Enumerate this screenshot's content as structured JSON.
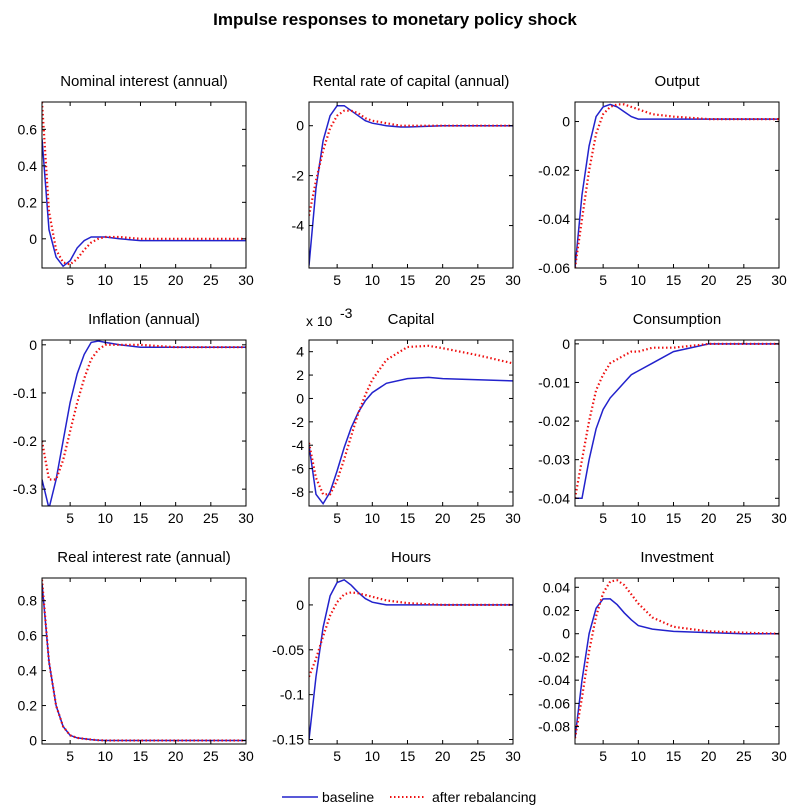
{
  "title": "Impulse responses to monetary policy shock",
  "legend": {
    "placement": "bottom-center",
    "entries": [
      {
        "label": "baseline",
        "color": "#2222cc",
        "style": "solid"
      },
      {
        "label": "after rebalancing",
        "color": "#ee1111",
        "style": "dotted"
      }
    ]
  },
  "chart_data": [
    {
      "type": "line",
      "title": "Nominal interest (annual)",
      "xlim": [
        1,
        30
      ],
      "ylim": [
        -0.16,
        0.75
      ],
      "xticks": [
        5,
        10,
        15,
        20,
        25,
        30
      ],
      "xtick_labels": [
        "5",
        "10",
        "15",
        "20",
        "25",
        "30"
      ],
      "yticks": [
        0,
        0.2,
        0.4,
        0.6
      ],
      "ytick_labels": [
        "0",
        "0.2",
        "0.4",
        "0.6"
      ],
      "series": [
        {
          "name": "baseline",
          "x": [
            1,
            2,
            3,
            4,
            5,
            6,
            7,
            8,
            9,
            10,
            12,
            15,
            20,
            25,
            30
          ],
          "y": [
            0.55,
            0.05,
            -0.1,
            -0.15,
            -0.12,
            -0.05,
            -0.01,
            0.01,
            0.01,
            0.01,
            0,
            -0.01,
            -0.01,
            -0.01,
            -0.01
          ]
        },
        {
          "name": "after rebalancing",
          "x": [
            1,
            2,
            3,
            4,
            5,
            6,
            7,
            8,
            9,
            10,
            12,
            15,
            20,
            25,
            30
          ],
          "y": [
            0.75,
            0.15,
            -0.06,
            -0.13,
            -0.14,
            -0.11,
            -0.06,
            -0.02,
            0,
            0.01,
            0.01,
            0,
            0,
            0,
            0
          ]
        }
      ]
    },
    {
      "type": "line",
      "title": "Rental rate of capital (annual)",
      "xlim": [
        1,
        30
      ],
      "ylim": [
        -5.7,
        0.95
      ],
      "xticks": [
        5,
        10,
        15,
        20,
        25,
        30
      ],
      "xtick_labels": [
        "5",
        "10",
        "15",
        "20",
        "25",
        "30"
      ],
      "yticks": [
        -4,
        -2,
        0
      ],
      "ytick_labels": [
        "-4",
        "-2",
        "0"
      ],
      "series": [
        {
          "name": "baseline",
          "x": [
            1,
            2,
            3,
            4,
            5,
            6,
            7,
            8,
            9,
            10,
            12,
            14,
            15,
            20,
            25,
            30
          ],
          "y": [
            -5.6,
            -2.5,
            -0.6,
            0.4,
            0.8,
            0.8,
            0.6,
            0.4,
            0.2,
            0.1,
            0,
            -0.05,
            -0.05,
            0,
            0,
            0
          ]
        },
        {
          "name": "after rebalancing",
          "x": [
            1,
            2,
            3,
            4,
            5,
            6,
            7,
            8,
            9,
            10,
            12,
            14,
            15,
            20,
            25,
            30
          ],
          "y": [
            -3.6,
            -2.2,
            -1,
            -0.1,
            0.4,
            0.6,
            0.6,
            0.5,
            0.3,
            0.2,
            0.1,
            0,
            0,
            0,
            0,
            0
          ]
        }
      ]
    },
    {
      "type": "line",
      "title": "Output",
      "xlim": [
        1,
        30
      ],
      "ylim": [
        -0.06,
        0.008
      ],
      "xticks": [
        5,
        10,
        15,
        20,
        25,
        30
      ],
      "xtick_labels": [
        "5",
        "10",
        "15",
        "20",
        "25",
        "30"
      ],
      "yticks": [
        -0.06,
        -0.04,
        -0.02,
        0
      ],
      "ytick_labels": [
        "-0.06",
        "-0.04",
        "-0.02",
        "0"
      ],
      "series": [
        {
          "name": "baseline",
          "x": [
            1,
            2,
            3,
            4,
            5,
            6,
            7,
            8,
            9,
            10,
            12,
            15,
            20,
            25,
            30
          ],
          "y": [
            -0.06,
            -0.03,
            -0.01,
            0.002,
            0.006,
            0.007,
            0.006,
            0.004,
            0.002,
            0.001,
            0.001,
            0.001,
            0.001,
            0.001,
            0.001
          ]
        },
        {
          "name": "after rebalancing",
          "x": [
            1,
            2,
            3,
            4,
            5,
            6,
            7,
            8,
            9,
            10,
            12,
            15,
            20,
            25,
            30
          ],
          "y": [
            -0.06,
            -0.04,
            -0.02,
            -0.005,
            0.003,
            0.006,
            0.007,
            0.007,
            0.006,
            0.005,
            0.003,
            0.002,
            0.001,
            0.001,
            0.001
          ]
        }
      ]
    },
    {
      "type": "line",
      "title": "Inflation (annual)",
      "xlim": [
        1,
        30
      ],
      "ylim": [
        -0.335,
        0.01
      ],
      "xticks": [
        5,
        10,
        15,
        20,
        25,
        30
      ],
      "xtick_labels": [
        "5",
        "10",
        "15",
        "20",
        "25",
        "30"
      ],
      "yticks": [
        -0.3,
        -0.2,
        -0.1,
        0
      ],
      "ytick_labels": [
        "-0.3",
        "-0.2",
        "-0.1",
        "0"
      ],
      "series": [
        {
          "name": "baseline",
          "x": [
            1,
            2,
            3,
            4,
            5,
            6,
            7,
            8,
            9,
            10,
            12,
            15,
            20,
            25,
            30
          ],
          "y": [
            -0.28,
            -0.34,
            -0.28,
            -0.2,
            -0.12,
            -0.06,
            -0.02,
            0.005,
            0.008,
            0.005,
            0,
            -0.005,
            -0.005,
            -0.005,
            -0.005
          ]
        },
        {
          "name": "after rebalancing",
          "x": [
            1,
            2,
            3,
            4,
            5,
            6,
            7,
            8,
            9,
            10,
            12,
            15,
            20,
            25,
            30
          ],
          "y": [
            -0.2,
            -0.28,
            -0.28,
            -0.24,
            -0.18,
            -0.12,
            -0.07,
            -0.03,
            -0.01,
            0,
            0,
            0,
            -0.005,
            -0.005,
            -0.005
          ]
        }
      ]
    },
    {
      "type": "line",
      "title": "Capital",
      "scale_note": "x 10",
      "scale_exponent": "-3",
      "xlim": [
        1,
        30
      ],
      "ylim": [
        -9.2,
        5
      ],
      "xticks": [
        5,
        10,
        15,
        20,
        25,
        30
      ],
      "xtick_labels": [
        "5",
        "10",
        "15",
        "20",
        "25",
        "30"
      ],
      "yticks": [
        -8,
        -6,
        -4,
        -2,
        0,
        2,
        4
      ],
      "ytick_labels": [
        "-8",
        "-6",
        "-4",
        "-2",
        "0",
        "2",
        "4"
      ],
      "series": [
        {
          "name": "baseline",
          "x": [
            1,
            2,
            3,
            4,
            5,
            6,
            7,
            8,
            9,
            10,
            12,
            15,
            18,
            20,
            25,
            30
          ],
          "y": [
            -4,
            -8.2,
            -9,
            -8,
            -6.2,
            -4.2,
            -2.5,
            -1.2,
            -0.2,
            0.5,
            1.3,
            1.7,
            1.8,
            1.7,
            1.6,
            1.5
          ]
        },
        {
          "name": "after rebalancing",
          "x": [
            1,
            2,
            3,
            4,
            5,
            6,
            7,
            8,
            9,
            10,
            12,
            15,
            18,
            20,
            25,
            30
          ],
          "y": [
            -3.8,
            -6.8,
            -8.2,
            -8.2,
            -7,
            -5.2,
            -3.2,
            -1.3,
            0.3,
            1.6,
            3.3,
            4.4,
            4.5,
            4.3,
            3.7,
            3
          ]
        }
      ]
    },
    {
      "type": "line",
      "title": "Consumption",
      "xlim": [
        1,
        30
      ],
      "ylim": [
        -0.042,
        0.001
      ],
      "xticks": [
        5,
        10,
        15,
        20,
        25,
        30
      ],
      "xtick_labels": [
        "5",
        "10",
        "15",
        "20",
        "25",
        "30"
      ],
      "yticks": [
        -0.04,
        -0.03,
        -0.02,
        -0.01,
        0
      ],
      "ytick_labels": [
        "-0.04",
        "-0.03",
        "-0.02",
        "-0.01",
        "0"
      ],
      "series": [
        {
          "name": "baseline",
          "x": [
            1,
            2,
            3,
            4,
            5,
            6,
            7,
            8,
            9,
            10,
            12,
            15,
            20,
            25,
            30
          ],
          "y": [
            -0.04,
            -0.04,
            -0.03,
            -0.022,
            -0.017,
            -0.014,
            -0.012,
            -0.01,
            -0.008,
            -0.007,
            -0.005,
            -0.002,
            0,
            0,
            0
          ]
        },
        {
          "name": "after rebalancing",
          "x": [
            1,
            2,
            3,
            4,
            5,
            6,
            7,
            8,
            9,
            10,
            12,
            15,
            20,
            25,
            30
          ],
          "y": [
            -0.04,
            -0.03,
            -0.02,
            -0.012,
            -0.008,
            -0.005,
            -0.004,
            -0.003,
            -0.002,
            -0.002,
            -0.001,
            -0.001,
            0,
            0,
            0
          ]
        }
      ]
    },
    {
      "type": "line",
      "title": "Real interest rate (annual)",
      "xlim": [
        1,
        30
      ],
      "ylim": [
        -0.02,
        0.93
      ],
      "xticks": [
        5,
        10,
        15,
        20,
        25,
        30
      ],
      "xtick_labels": [
        "5",
        "10",
        "15",
        "20",
        "25",
        "30"
      ],
      "yticks": [
        0,
        0.2,
        0.4,
        0.6,
        0.8
      ],
      "ytick_labels": [
        "0",
        "0.2",
        "0.4",
        "0.6",
        "0.8"
      ],
      "series": [
        {
          "name": "baseline",
          "x": [
            1,
            2,
            3,
            4,
            5,
            6,
            7,
            8,
            9,
            10,
            12,
            15,
            20,
            25,
            30
          ],
          "y": [
            0.9,
            0.45,
            0.2,
            0.08,
            0.03,
            0.015,
            0.01,
            0.005,
            0.002,
            0,
            0,
            0,
            0,
            0,
            0
          ]
        },
        {
          "name": "after rebalancing",
          "x": [
            1,
            2,
            3,
            4,
            5,
            6,
            7,
            8,
            9,
            10,
            12,
            15,
            20,
            25,
            30
          ],
          "y": [
            0.92,
            0.45,
            0.2,
            0.08,
            0.03,
            0.015,
            0.01,
            0.005,
            0.002,
            0,
            0,
            0,
            0,
            0,
            0
          ]
        }
      ]
    },
    {
      "type": "line",
      "title": "Hours",
      "xlim": [
        1,
        30
      ],
      "ylim": [
        -0.155,
        0.03
      ],
      "xticks": [
        5,
        10,
        15,
        20,
        25,
        30
      ],
      "xtick_labels": [
        "5",
        "10",
        "15",
        "20",
        "25",
        "30"
      ],
      "yticks": [
        -0.15,
        -0.1,
        -0.05,
        0
      ],
      "ytick_labels": [
        "-0.15",
        "-0.1",
        "-0.05",
        "0"
      ],
      "series": [
        {
          "name": "baseline",
          "x": [
            1,
            2,
            3,
            4,
            5,
            6,
            7,
            8,
            9,
            10,
            12,
            15,
            20,
            25,
            30
          ],
          "y": [
            -0.15,
            -0.08,
            -0.025,
            0.01,
            0.025,
            0.028,
            0.022,
            0.014,
            0.007,
            0.003,
            0,
            0,
            0,
            0,
            0
          ]
        },
        {
          "name": "after rebalancing",
          "x": [
            1,
            2,
            3,
            4,
            5,
            6,
            7,
            8,
            9,
            10,
            12,
            15,
            20,
            25,
            30
          ],
          "y": [
            -0.08,
            -0.06,
            -0.035,
            -0.012,
            0.003,
            0.012,
            0.014,
            0.013,
            0.011,
            0.009,
            0.005,
            0.002,
            0,
            0,
            0
          ]
        }
      ]
    },
    {
      "type": "line",
      "title": "Investment",
      "xlim": [
        1,
        30
      ],
      "ylim": [
        -0.095,
        0.048
      ],
      "xticks": [
        5,
        10,
        15,
        20,
        25,
        30
      ],
      "xtick_labels": [
        "5",
        "10",
        "15",
        "20",
        "25",
        "30"
      ],
      "yticks": [
        -0.08,
        -0.06,
        -0.04,
        -0.02,
        0,
        0.02,
        0.04
      ],
      "ytick_labels": [
        "-0.08",
        "-0.06",
        "-0.04",
        "-0.02",
        "0",
        "0.02",
        "0.04"
      ],
      "series": [
        {
          "name": "baseline",
          "x": [
            1,
            2,
            3,
            4,
            5,
            6,
            7,
            8,
            9,
            10,
            12,
            15,
            20,
            25,
            30
          ],
          "y": [
            -0.09,
            -0.04,
            0,
            0.022,
            0.03,
            0.03,
            0.025,
            0.018,
            0.012,
            0.007,
            0.004,
            0.002,
            0.001,
            0,
            0
          ]
        },
        {
          "name": "after rebalancing",
          "x": [
            1,
            2,
            3,
            4,
            5,
            6,
            7,
            8,
            9,
            10,
            12,
            15,
            20,
            25,
            30
          ],
          "y": [
            -0.09,
            -0.055,
            -0.015,
            0.015,
            0.035,
            0.045,
            0.046,
            0.042,
            0.034,
            0.026,
            0.014,
            0.006,
            0.002,
            0.001,
            0
          ]
        }
      ]
    }
  ]
}
